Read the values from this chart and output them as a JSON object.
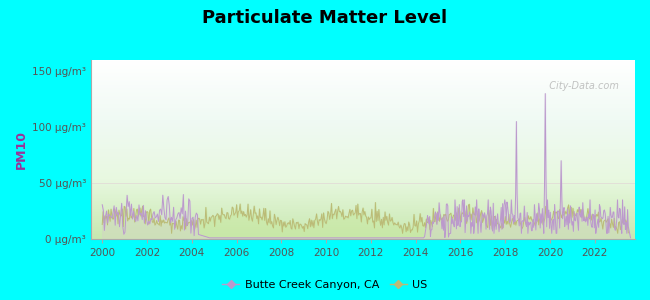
{
  "title": "Particulate Matter Level",
  "ylabel": "PM10",
  "background_color": "#00FFFF",
  "ytick_labels": [
    "0 μg/m³",
    "50 μg/m³",
    "100 μg/m³",
    "150 μg/m³"
  ],
  "ytick_values": [
    0,
    50,
    100,
    150
  ],
  "xlim": [
    1999.5,
    2023.8
  ],
  "ylim": [
    0,
    160
  ],
  "xticks": [
    2000,
    2002,
    2004,
    2006,
    2008,
    2010,
    2012,
    2014,
    2016,
    2018,
    2020,
    2022
  ],
  "line1_color": "#bb99cc",
  "line2_color": "#bbbb77",
  "fill1_color": "#ddc8ee",
  "fill2_color": "#d8eab0",
  "legend_labels": [
    "Butte Creek Canyon, CA",
    "US"
  ],
  "watermark": "  City-Data.com",
  "watermark_icon": "ⓘ",
  "plot_bg_top": "#e8f5e0",
  "plot_bg_bottom": "#d8f0c0",
  "ylabel_color": "#993399",
  "title_fontsize": 13,
  "tick_fontsize": 7.5
}
